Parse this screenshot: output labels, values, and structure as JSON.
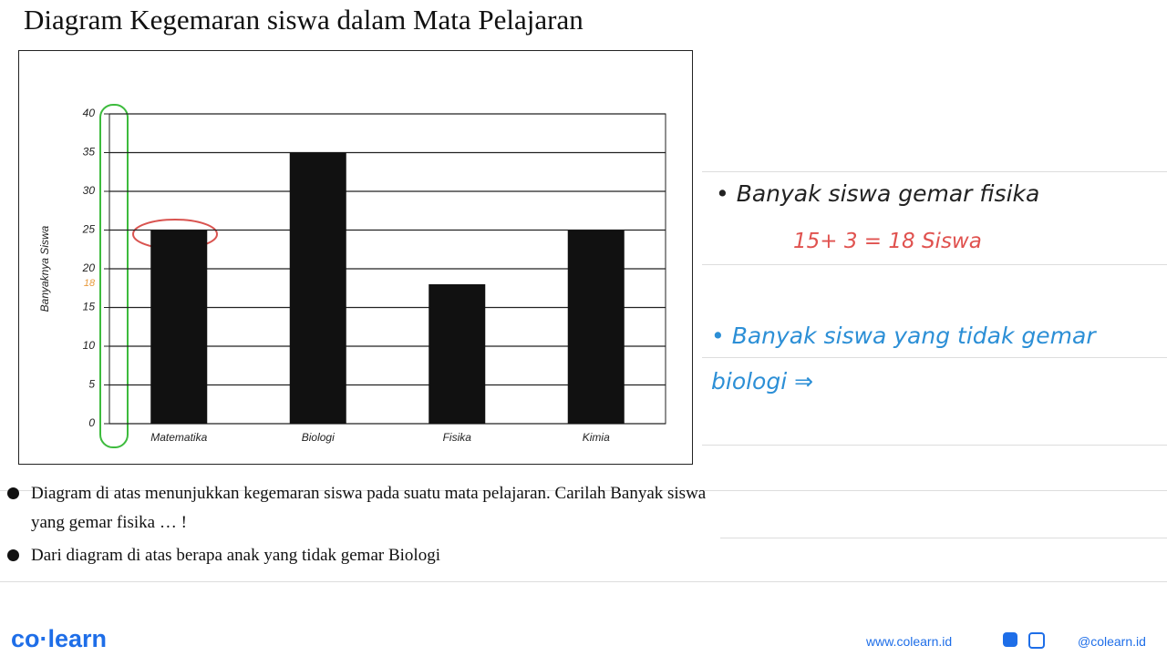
{
  "title": "Diagram Kegemaran siswa dalam  Mata Pelajaran",
  "chart_data": {
    "type": "bar",
    "ylabel": "Banyaknya Siswa",
    "categories": [
      "Matematika",
      "Biologi",
      "Fisika",
      "Kimia"
    ],
    "values": [
      25,
      35,
      18,
      25
    ],
    "color": "#111111",
    "ylim": [
      0,
      40
    ],
    "yticks": [
      0,
      5,
      10,
      15,
      20,
      25,
      30,
      35,
      40
    ],
    "grid": true
  },
  "axis_annotation": "18",
  "notes": [
    "• Banyak siswa gemar fisika",
    "15+ 3  = 18 Siswa",
    "• Banyak siswa yang tidak gemar biologi ⇒"
  ],
  "questions": [
    "Diagram di atas menunjukkan kegemaran siswa pada suatu mata pelajaran. Carilah Banyak siswa yang gemar fisika … !",
    "Dari diagram di atas berapa anak yang tidak gemar Biologi"
  ],
  "footer": {
    "brand": "co·learn",
    "website": "www.colearn.id",
    "social": "@colearn.id"
  }
}
